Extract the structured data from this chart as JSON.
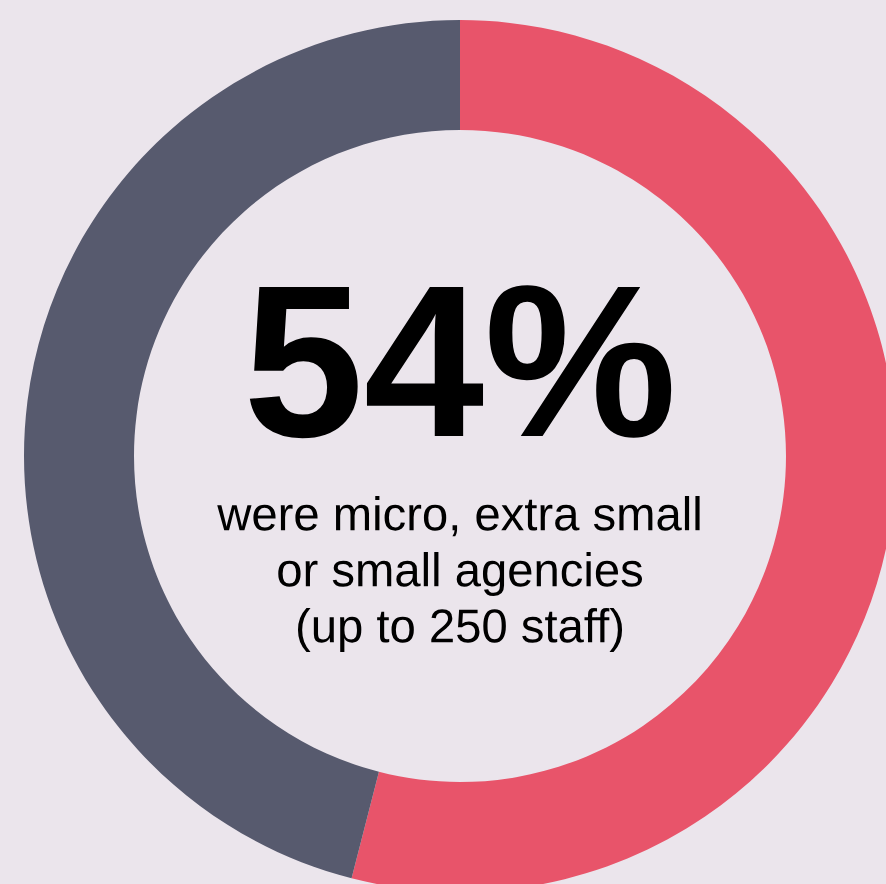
{
  "chart_data": {
    "type": "donut",
    "categories": [
      null,
      null
    ],
    "values": [
      54,
      46
    ],
    "colors": [
      "#e8546a",
      "#575a6e"
    ],
    "annotations": [
      "54%",
      "were micro, extra small\nor small agencies\n(up to 250 staff)"
    ]
  }
}
